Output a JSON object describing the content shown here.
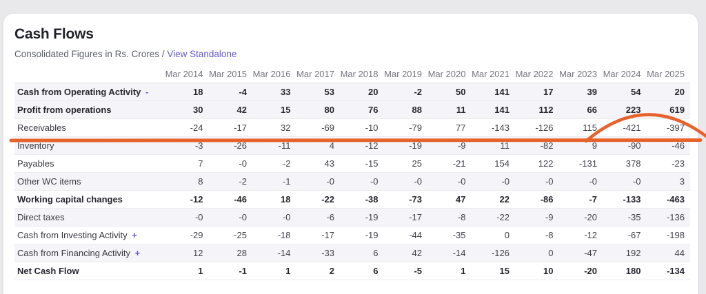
{
  "page": {
    "background": "#e9e9ec"
  },
  "card": {
    "title": "Cash Flows",
    "subtitle_prefix": "Consolidated Figures in Rs. Crores / ",
    "standalone_link": "View Standalone"
  },
  "table": {
    "columns": [
      "Mar 2014",
      "Mar 2015",
      "Mar 2016",
      "Mar 2017",
      "Mar 2018",
      "Mar 2019",
      "Mar 2020",
      "Mar 2021",
      "Mar 2022",
      "Mar 2023",
      "Mar 2024",
      "Mar 2025"
    ],
    "rows": [
      {
        "label": "Cash from Operating Activity",
        "toggle": "-",
        "bold": true,
        "clickable": true,
        "values": [
          "18",
          "-4",
          "33",
          "53",
          "20",
          "-2",
          "50",
          "141",
          "17",
          "39",
          "54",
          "20"
        ]
      },
      {
        "label": "Profit from operations",
        "toggle": "",
        "bold": true,
        "clickable": false,
        "values": [
          "30",
          "42",
          "15",
          "80",
          "76",
          "88",
          "11",
          "141",
          "112",
          "66",
          "223",
          "619"
        ]
      },
      {
        "label": "Receivables",
        "toggle": "",
        "bold": false,
        "clickable": false,
        "values": [
          "-24",
          "-17",
          "32",
          "-69",
          "-10",
          "-79",
          "77",
          "-143",
          "-126",
          "115",
          "-421",
          "-397"
        ]
      },
      {
        "label": "Inventory",
        "toggle": "",
        "bold": false,
        "clickable": false,
        "values": [
          "-3",
          "-26",
          "-11",
          "4",
          "-12",
          "-19",
          "-9",
          "11",
          "-82",
          "9",
          "-90",
          "-46"
        ]
      },
      {
        "label": "Payables",
        "toggle": "",
        "bold": false,
        "clickable": false,
        "values": [
          "7",
          "-0",
          "-2",
          "43",
          "-15",
          "25",
          "-21",
          "154",
          "122",
          "-131",
          "378",
          "-23"
        ]
      },
      {
        "label": "Other WC items",
        "toggle": "",
        "bold": false,
        "clickable": false,
        "values": [
          "8",
          "-2",
          "-1",
          "-0",
          "-0",
          "-0",
          "-0",
          "-0",
          "-0",
          "-0",
          "-0",
          "3"
        ]
      },
      {
        "label": "Working capital changes",
        "toggle": "",
        "bold": true,
        "clickable": false,
        "values": [
          "-12",
          "-46",
          "18",
          "-22",
          "-38",
          "-73",
          "47",
          "22",
          "-86",
          "-7",
          "-133",
          "-463"
        ]
      },
      {
        "label": "Direct taxes",
        "toggle": "",
        "bold": false,
        "clickable": false,
        "values": [
          "-0",
          "-0",
          "-0",
          "-6",
          "-19",
          "-17",
          "-8",
          "-22",
          "-9",
          "-20",
          "-35",
          "-136"
        ]
      },
      {
        "label": "Cash from Investing Activity",
        "toggle": "+",
        "bold": false,
        "clickable": true,
        "values": [
          "-29",
          "-25",
          "-18",
          "-17",
          "-19",
          "-44",
          "-35",
          "0",
          "-8",
          "-12",
          "-67",
          "-198"
        ]
      },
      {
        "label": "Cash from Financing Activity",
        "toggle": "+",
        "bold": false,
        "clickable": true,
        "values": [
          "12",
          "28",
          "-14",
          "-33",
          "6",
          "42",
          "-14",
          "-126",
          "0",
          "-47",
          "192",
          "44"
        ]
      },
      {
        "label": "Net Cash Flow",
        "toggle": "",
        "bold": true,
        "clickable": false,
        "values": [
          "1",
          "-1",
          "1",
          "2",
          "6",
          "-5",
          "1",
          "15",
          "10",
          "-20",
          "180",
          "-134"
        ]
      }
    ]
  },
  "annotation": {
    "description": "hand-drawn marker: horizontal line under Receivables row with arc circling Mar 2024 / Mar 2025 receivables",
    "color": "#e7632c"
  },
  "colors": {
    "accent_link": "#6157d0",
    "stripe": "#f5f5f9",
    "page_background": "#e9e9ec"
  }
}
